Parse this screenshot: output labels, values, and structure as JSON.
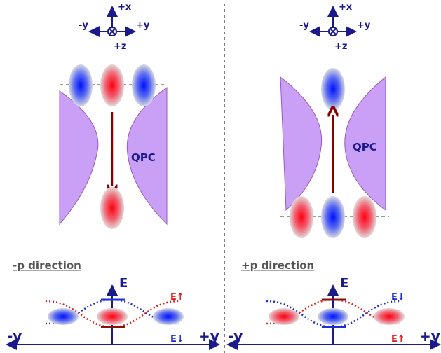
{
  "panels": [
    {
      "compass": {
        "x": "+x",
        "y_neg": "-y",
        "y_pos": "+y",
        "z": "+z"
      },
      "qpc_label": "QPC",
      "direction": "-p direction",
      "energy": {
        "axis_label": "E",
        "upper": "E↑",
        "lower": "E↓",
        "y_neg": "-y",
        "y_pos": "+y"
      }
    },
    {
      "compass": {
        "x": "+x",
        "y_neg": "-y",
        "y_pos": "+y",
        "z": "+z"
      },
      "qpc_label": "QPC",
      "direction": "+p direction",
      "energy": {
        "axis_label": "E",
        "upper": "E↓",
        "lower": "E↑",
        "y_neg": "-y",
        "y_pos": "+y"
      }
    }
  ]
}
